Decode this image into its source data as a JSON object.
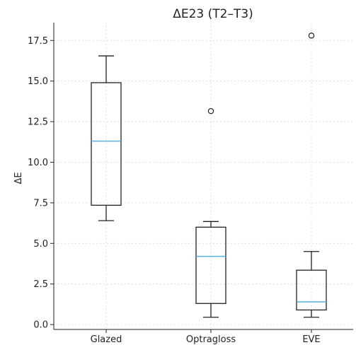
{
  "chart_data": {
    "type": "box",
    "title": "ΔE23 (T2–T3)",
    "xlabel": "",
    "ylabel": "ΔE",
    "ylim": [
      -0.3,
      18.6
    ],
    "yticks": [
      0.0,
      2.5,
      5.0,
      7.5,
      10.0,
      12.5,
      15.0,
      17.5
    ],
    "ytick_labels": [
      "0.0",
      "2.5",
      "5.0",
      "7.5",
      "10.0",
      "12.5",
      "15.0",
      "17.5"
    ],
    "grid": true,
    "categories": [
      "Glazed",
      "Optragloss",
      "EVE"
    ],
    "boxes": [
      {
        "whisker_low": 6.4,
        "q1": 7.35,
        "median": 11.3,
        "q3": 14.9,
        "whisker_high": 16.55,
        "outliers": []
      },
      {
        "whisker_low": 0.45,
        "q1": 1.3,
        "median": 4.2,
        "q3": 6.0,
        "whisker_high": 6.35,
        "outliers": [
          13.15
        ]
      },
      {
        "whisker_low": 0.45,
        "q1": 0.9,
        "median": 1.4,
        "q3": 3.35,
        "whisker_high": 4.5,
        "outliers": [
          17.8
        ]
      }
    ],
    "colors": {
      "box": "#222222",
      "median": "#5aaee0",
      "grid": "#d8d8d8",
      "outlier": "#222222"
    }
  }
}
